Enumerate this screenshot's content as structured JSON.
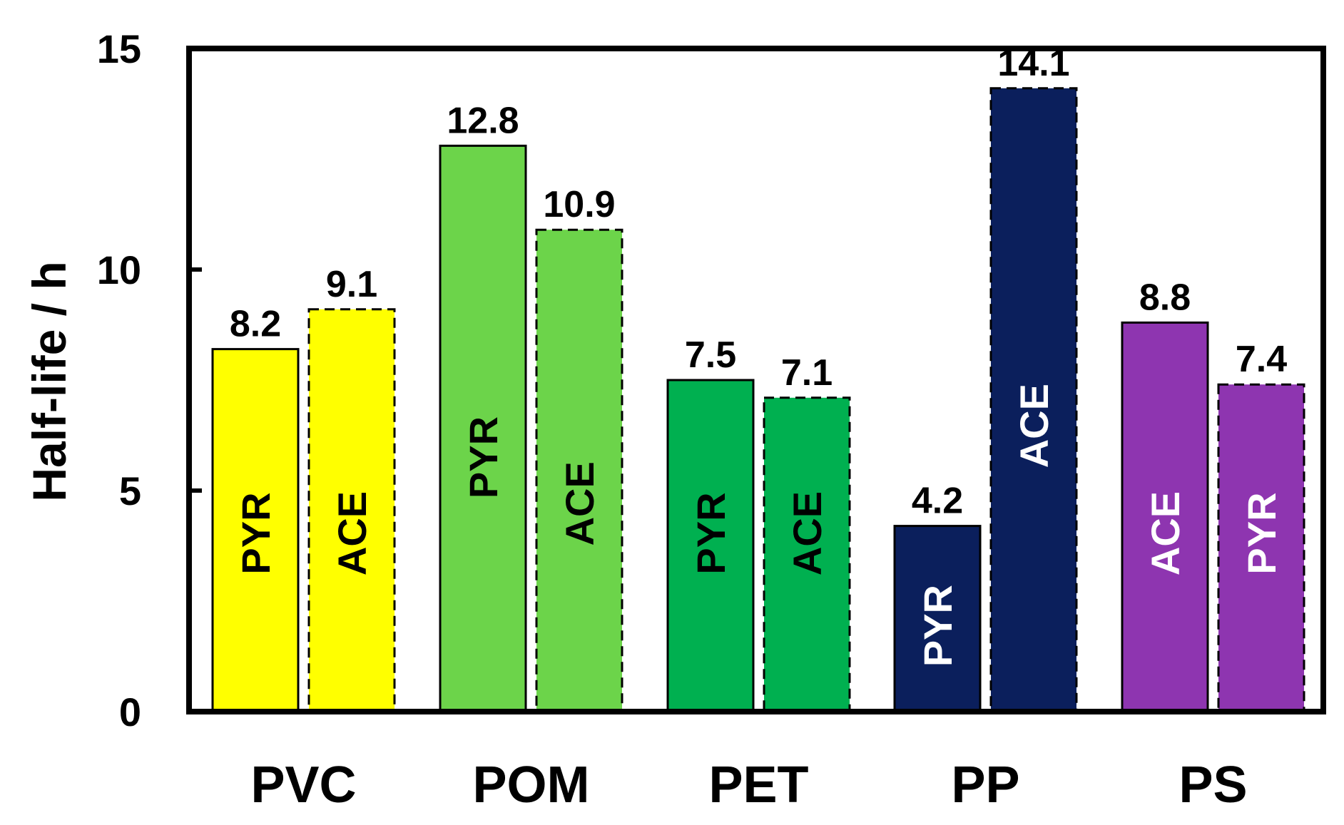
{
  "chart_data": {
    "type": "bar",
    "ylabel": "Half-life / h",
    "ylim": [
      0,
      15
    ],
    "yticks": [
      "0",
      "5",
      "10",
      "15"
    ],
    "groups": [
      {
        "category": "PVC",
        "bars": [
          {
            "label": "PYR",
            "value": 8.2,
            "value_label": "8.2",
            "color": "#FFFF00",
            "text_color": "#000000",
            "dashed": false
          },
          {
            "label": "ACE",
            "value": 9.1,
            "value_label": "9.1",
            "color": "#FFFF00",
            "text_color": "#000000",
            "dashed": true
          }
        ]
      },
      {
        "category": "POM",
        "bars": [
          {
            "label": "PYR",
            "value": 12.8,
            "value_label": "12.8",
            "color": "#6CD44A",
            "text_color": "#000000",
            "dashed": false
          },
          {
            "label": "ACE",
            "value": 10.9,
            "value_label": "10.9",
            "color": "#6CD44A",
            "text_color": "#000000",
            "dashed": true
          }
        ]
      },
      {
        "category": "PET",
        "bars": [
          {
            "label": "PYR",
            "value": 7.5,
            "value_label": "7.5",
            "color": "#00B050",
            "text_color": "#000000",
            "dashed": false
          },
          {
            "label": "ACE",
            "value": 7.1,
            "value_label": "7.1",
            "color": "#00B050",
            "text_color": "#000000",
            "dashed": true
          }
        ]
      },
      {
        "category": "PP",
        "bars": [
          {
            "label": "PYR",
            "value": 4.2,
            "value_label": "4.2",
            "color": "#0B1F5C",
            "text_color": "#FFFFFF",
            "dashed": false
          },
          {
            "label": "ACE",
            "value": 14.1,
            "value_label": "14.1",
            "color": "#0B1F5C",
            "text_color": "#FFFFFF",
            "dashed": true
          }
        ]
      },
      {
        "category": "PS",
        "bars": [
          {
            "label": "ACE",
            "value": 8.8,
            "value_label": "8.8",
            "color": "#8E35B0",
            "text_color": "#FFFFFF",
            "dashed": false
          },
          {
            "label": "PYR",
            "value": 7.4,
            "value_label": "7.4",
            "color": "#8E35B0",
            "text_color": "#FFFFFF",
            "dashed": true
          }
        ]
      }
    ]
  }
}
